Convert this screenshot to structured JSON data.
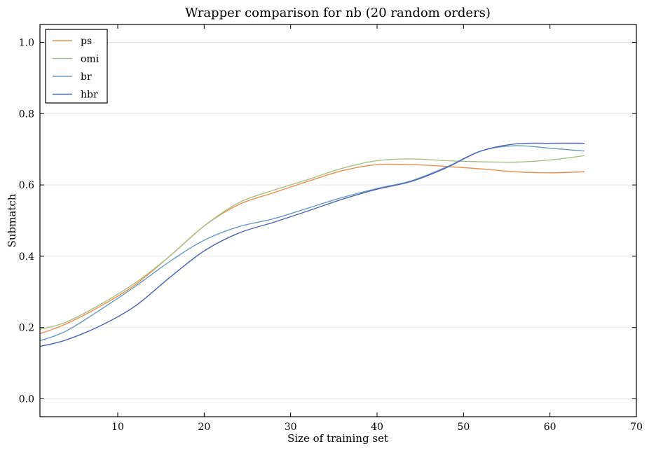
{
  "chart_data": {
    "type": "line",
    "title": "Wrapper comparison for nb (20 random orders)",
    "xlabel": "Size of training set",
    "ylabel": "Submatch",
    "xlim": [
      1,
      70
    ],
    "ylim": [
      -0.05,
      1.05
    ],
    "xticks": [
      10,
      20,
      30,
      40,
      50,
      60,
      70
    ],
    "yticks": [
      0.0,
      0.2,
      0.4,
      0.6,
      0.8,
      1.0
    ],
    "grid": "horizontal",
    "legend_position": "top-left",
    "series": [
      {
        "name": "ps",
        "color": "#e8904a",
        "x": [
          1,
          4,
          8,
          12,
          16,
          20,
          24,
          28,
          32,
          36,
          40,
          44,
          48,
          52,
          56,
          60,
          64
        ],
        "y": [
          0.183,
          0.21,
          0.26,
          0.32,
          0.4,
          0.485,
          0.545,
          0.578,
          0.61,
          0.64,
          0.657,
          0.657,
          0.652,
          0.645,
          0.637,
          0.634,
          0.637
        ]
      },
      {
        "name": "omi",
        "color": "#a8c089",
        "x": [
          1,
          4,
          8,
          12,
          16,
          20,
          24,
          28,
          32,
          36,
          40,
          44,
          48,
          52,
          56,
          60,
          64
        ],
        "y": [
          0.195,
          0.215,
          0.265,
          0.325,
          0.4,
          0.485,
          0.55,
          0.585,
          0.615,
          0.647,
          0.668,
          0.673,
          0.668,
          0.665,
          0.664,
          0.67,
          0.682
        ]
      },
      {
        "name": "br",
        "color": "#6b9bc4",
        "x": [
          1,
          4,
          8,
          12,
          16,
          20,
          24,
          28,
          32,
          36,
          40,
          44,
          48,
          52,
          56,
          60,
          64
        ],
        "y": [
          0.163,
          0.19,
          0.25,
          0.315,
          0.385,
          0.445,
          0.483,
          0.505,
          0.535,
          0.565,
          0.59,
          0.612,
          0.65,
          0.695,
          0.71,
          0.703,
          0.695
        ]
      },
      {
        "name": "hbr",
        "color": "#4a65b2",
        "x": [
          1,
          4,
          8,
          12,
          16,
          20,
          24,
          28,
          32,
          36,
          40,
          44,
          48,
          52,
          56,
          60,
          64
        ],
        "y": [
          0.147,
          0.165,
          0.205,
          0.26,
          0.34,
          0.415,
          0.465,
          0.495,
          0.527,
          0.56,
          0.588,
          0.61,
          0.648,
          0.695,
          0.715,
          0.717,
          0.717
        ]
      }
    ]
  }
}
